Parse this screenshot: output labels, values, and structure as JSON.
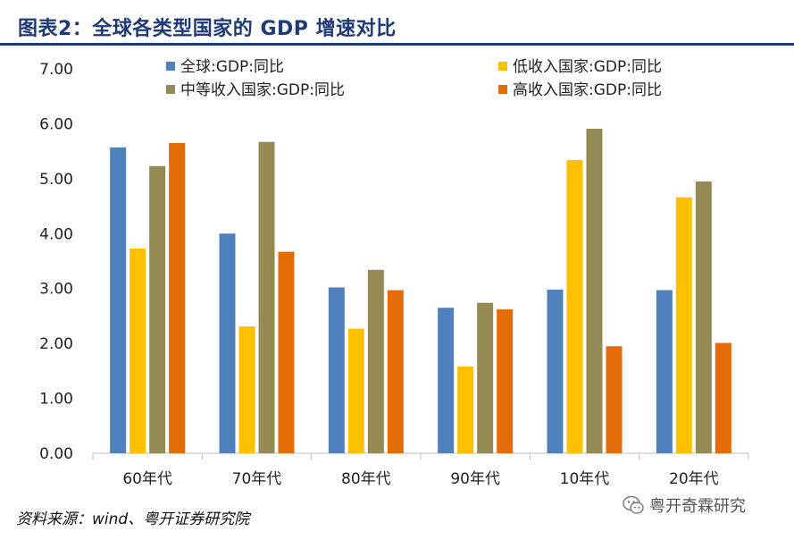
{
  "title": "图表2：全球各类型国家的 GDP 增速对比",
  "source": "资料来源：wind、粤开证券研究院",
  "watermark": "粤开奇霖研究",
  "chart_data": {
    "type": "bar",
    "categories": [
      "60年代",
      "70年代",
      "80年代",
      "90年代",
      "10年代",
      "20年代"
    ],
    "series": [
      {
        "name": "全球:GDP:同比",
        "color": "#4f81bd",
        "values": [
          5.57,
          4.0,
          3.02,
          2.65,
          2.98,
          2.97
        ]
      },
      {
        "name": "低收入国家:GDP:同比",
        "color": "#ffc000",
        "values": [
          3.73,
          2.31,
          2.27,
          1.58,
          5.34,
          4.66
        ]
      },
      {
        "name": "中等收入国家:GDP:同比",
        "color": "#948a54",
        "values": [
          5.23,
          5.67,
          3.34,
          2.74,
          5.91,
          4.95
        ]
      },
      {
        "name": "高收入国家:GDP:同比",
        "color": "#e36c09",
        "values": [
          5.65,
          3.67,
          2.97,
          2.62,
          1.95,
          2.01
        ]
      }
    ],
    "yticks": [
      "0.00",
      "1.00",
      "2.00",
      "3.00",
      "4.00",
      "5.00",
      "6.00",
      "7.00"
    ],
    "ylim": [
      0,
      7
    ],
    "grid": false,
    "legend": "top"
  }
}
